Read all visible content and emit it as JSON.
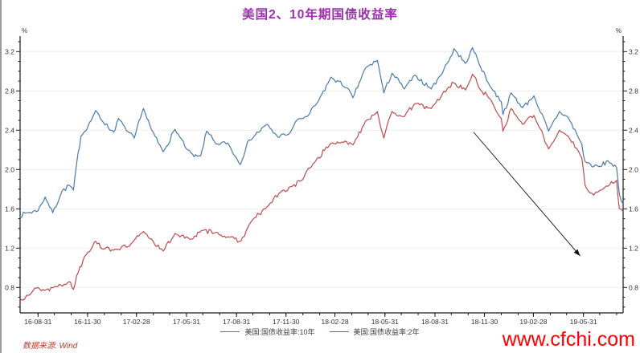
{
  "title": "美国2、10年期国债收益率",
  "source": "数据来源: Wind",
  "watermark": "www.cfchi.com",
  "colors": {
    "title": "#9b2fae",
    "series_10y": "#4a79ad",
    "series_2y": "#bf4a4e",
    "axis": "#1a1a1a",
    "grid": "#ededed",
    "tick_label": "#333333",
    "source_text": "#c0392b",
    "watermark_text": "#ff0000",
    "arrow": "#111111"
  },
  "legend": [
    {
      "label": "美国:国债收益率:10年"
    },
    {
      "label": "美国:国债收益率:2年"
    }
  ],
  "chart_data": {
    "type": "line",
    "title": "美国2、10年期国债收益率",
    "ylabel": "%",
    "unit_label_left": "%",
    "unit_label_right": "%",
    "grid": "horizontal-major",
    "legend_position": "bottom-center",
    "ylim": [
      0.54,
      3.36
    ],
    "yticks_major": [
      0.8,
      1.2,
      1.6,
      2.0,
      2.4,
      2.8,
      3.2
    ],
    "ytick_minor_step": 0.1,
    "x_range": {
      "start": "2016-07-29",
      "end": "2019-08-12"
    },
    "xticks": [
      {
        "date": "2016-08-31",
        "label": "16-08-31"
      },
      {
        "date": "2016-11-30",
        "label": "16-11-30"
      },
      {
        "date": "2017-02-28",
        "label": "17-02-28"
      },
      {
        "date": "2017-05-31",
        "label": "17-05-31"
      },
      {
        "date": "2017-08-31",
        "label": "17-08-31"
      },
      {
        "date": "2017-11-30",
        "label": "17-11-30"
      },
      {
        "date": "2018-02-28",
        "label": "18-02-28"
      },
      {
        "date": "2018-05-31",
        "label": "18-05-31"
      },
      {
        "date": "2018-08-31",
        "label": "18-08-31"
      },
      {
        "date": "2018-11-30",
        "label": "18-11-30"
      },
      {
        "date": "2019-02-28",
        "label": "19-02-28"
      },
      {
        "date": "2019-05-31",
        "label": "19-05-31"
      }
    ],
    "series": [
      {
        "name": "美国:国债收益率:10年",
        "color": "#4a79ad",
        "points": [
          [
            "2016-07-29",
            1.52
          ],
          [
            "2016-08-10",
            1.56
          ],
          [
            "2016-08-31",
            1.58
          ],
          [
            "2016-09-13",
            1.72
          ],
          [
            "2016-09-27",
            1.56
          ],
          [
            "2016-10-14",
            1.78
          ],
          [
            "2016-10-27",
            1.84
          ],
          [
            "2016-11-04",
            1.79
          ],
          [
            "2016-11-10",
            2.06
          ],
          [
            "2016-11-18",
            2.34
          ],
          [
            "2016-12-01",
            2.44
          ],
          [
            "2016-12-15",
            2.6
          ],
          [
            "2016-12-29",
            2.48
          ],
          [
            "2017-01-17",
            2.38
          ],
          [
            "2017-01-26",
            2.52
          ],
          [
            "2017-02-09",
            2.4
          ],
          [
            "2017-02-24",
            2.32
          ],
          [
            "2017-03-13",
            2.62
          ],
          [
            "2017-03-28",
            2.4
          ],
          [
            "2017-04-18",
            2.18
          ],
          [
            "2017-05-10",
            2.41
          ],
          [
            "2017-05-31",
            2.21
          ],
          [
            "2017-06-14",
            2.13
          ],
          [
            "2017-06-26",
            2.14
          ],
          [
            "2017-07-07",
            2.39
          ],
          [
            "2017-07-24",
            2.26
          ],
          [
            "2017-08-15",
            2.27
          ],
          [
            "2017-09-07",
            2.05
          ],
          [
            "2017-09-20",
            2.28
          ],
          [
            "2017-10-26",
            2.46
          ],
          [
            "2017-11-15",
            2.33
          ],
          [
            "2017-12-05",
            2.36
          ],
          [
            "2017-12-20",
            2.5
          ],
          [
            "2018-01-10",
            2.55
          ],
          [
            "2018-01-29",
            2.7
          ],
          [
            "2018-02-21",
            2.94
          ],
          [
            "2018-03-22",
            2.83
          ],
          [
            "2018-04-02",
            2.73
          ],
          [
            "2018-04-25",
            3.03
          ],
          [
            "2018-05-17",
            3.11
          ],
          [
            "2018-05-29",
            2.78
          ],
          [
            "2018-06-13",
            2.98
          ],
          [
            "2018-07-06",
            2.82
          ],
          [
            "2018-07-25",
            2.96
          ],
          [
            "2018-08-24",
            2.82
          ],
          [
            "2018-09-07",
            2.94
          ],
          [
            "2018-09-25",
            3.1
          ],
          [
            "2018-10-05",
            3.23
          ],
          [
            "2018-10-26",
            3.08
          ],
          [
            "2018-11-08",
            3.24
          ],
          [
            "2018-11-23",
            3.04
          ],
          [
            "2018-12-10",
            2.85
          ],
          [
            "2018-12-31",
            2.69
          ],
          [
            "2019-01-03",
            2.56
          ],
          [
            "2019-01-18",
            2.78
          ],
          [
            "2019-02-08",
            2.63
          ],
          [
            "2019-03-01",
            2.75
          ],
          [
            "2019-03-28",
            2.39
          ],
          [
            "2019-04-17",
            2.59
          ],
          [
            "2019-05-03",
            2.53
          ],
          [
            "2019-05-28",
            2.26
          ],
          [
            "2019-06-03",
            2.08
          ],
          [
            "2019-06-19",
            2.03
          ],
          [
            "2019-07-01",
            2.03
          ],
          [
            "2019-07-15",
            2.09
          ],
          [
            "2019-07-31",
            2.02
          ],
          [
            "2019-08-05",
            1.75
          ],
          [
            "2019-08-12",
            1.65
          ]
        ]
      },
      {
        "name": "美国:国债收益率:2年",
        "color": "#bf4a4e",
        "points": [
          [
            "2016-07-29",
            0.67
          ],
          [
            "2016-08-10",
            0.72
          ],
          [
            "2016-08-31",
            0.8
          ],
          [
            "2016-09-12",
            0.77
          ],
          [
            "2016-10-03",
            0.81
          ],
          [
            "2016-10-27",
            0.86
          ],
          [
            "2016-11-04",
            0.78
          ],
          [
            "2016-11-10",
            0.92
          ],
          [
            "2016-11-25",
            1.12
          ],
          [
            "2016-12-15",
            1.27
          ],
          [
            "2016-12-30",
            1.19
          ],
          [
            "2017-01-20",
            1.19
          ],
          [
            "2017-02-15",
            1.22
          ],
          [
            "2017-03-13",
            1.37
          ],
          [
            "2017-04-18",
            1.17
          ],
          [
            "2017-05-10",
            1.35
          ],
          [
            "2017-06-06",
            1.29
          ],
          [
            "2017-06-30",
            1.38
          ],
          [
            "2017-07-24",
            1.36
          ],
          [
            "2017-08-18",
            1.31
          ],
          [
            "2017-09-08",
            1.27
          ],
          [
            "2017-09-27",
            1.47
          ],
          [
            "2017-10-26",
            1.62
          ],
          [
            "2017-11-20",
            1.77
          ],
          [
            "2017-12-12",
            1.83
          ],
          [
            "2017-12-29",
            1.89
          ],
          [
            "2018-01-19",
            2.06
          ],
          [
            "2018-02-21",
            2.27
          ],
          [
            "2018-03-13",
            2.28
          ],
          [
            "2018-04-02",
            2.25
          ],
          [
            "2018-04-25",
            2.49
          ],
          [
            "2018-05-17",
            2.59
          ],
          [
            "2018-05-29",
            2.32
          ],
          [
            "2018-06-13",
            2.59
          ],
          [
            "2018-07-06",
            2.54
          ],
          [
            "2018-07-25",
            2.67
          ],
          [
            "2018-08-24",
            2.62
          ],
          [
            "2018-09-25",
            2.84
          ],
          [
            "2018-10-05",
            2.88
          ],
          [
            "2018-10-26",
            2.81
          ],
          [
            "2018-11-08",
            2.97
          ],
          [
            "2018-11-23",
            2.81
          ],
          [
            "2018-12-10",
            2.72
          ],
          [
            "2018-12-31",
            2.52
          ],
          [
            "2019-01-03",
            2.39
          ],
          [
            "2019-01-18",
            2.62
          ],
          [
            "2019-02-08",
            2.46
          ],
          [
            "2019-03-01",
            2.55
          ],
          [
            "2019-03-28",
            2.21
          ],
          [
            "2019-04-17",
            2.4
          ],
          [
            "2019-05-03",
            2.34
          ],
          [
            "2019-05-28",
            2.12
          ],
          [
            "2019-06-03",
            1.84
          ],
          [
            "2019-06-19",
            1.74
          ],
          [
            "2019-07-01",
            1.79
          ],
          [
            "2019-07-15",
            1.83
          ],
          [
            "2019-07-31",
            1.89
          ],
          [
            "2019-08-05",
            1.6
          ],
          [
            "2019-08-12",
            1.57
          ]
        ]
      }
    ],
    "annotation_arrow": {
      "from": {
        "date": "2018-11-10",
        "value": 2.38
      },
      "to": {
        "date": "2019-05-25",
        "value": 1.12
      }
    }
  }
}
